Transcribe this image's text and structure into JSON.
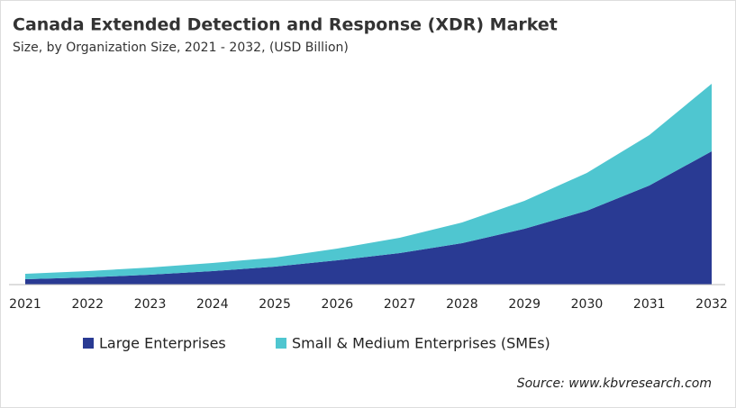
{
  "chart_data": {
    "type": "stacked-area",
    "title": "Canada Extended Detection and Response (XDR) Market",
    "subtitle": "Size, by Organization Size, 2021 - 2032, (USD Billion)",
    "source": "Source: www.kbvresearch.com",
    "categories": [
      "2021",
      "2022",
      "2023",
      "2024",
      "2025",
      "2026",
      "2027",
      "2028",
      "2029",
      "2030",
      "2031",
      "2032"
    ],
    "series": [
      {
        "name": "Large Enterprises",
        "color": "#293a93",
        "values": [
          0.06,
          0.08,
          0.11,
          0.15,
          0.2,
          0.27,
          0.35,
          0.46,
          0.62,
          0.82,
          1.1,
          1.48
        ]
      },
      {
        "name": "Small & Medium Enterprises (SMEs)",
        "color": "#4fc6d0",
        "values": [
          0.06,
          0.07,
          0.08,
          0.09,
          0.1,
          0.13,
          0.17,
          0.23,
          0.31,
          0.42,
          0.56,
          0.75
        ]
      }
    ],
    "ylim": [
      0,
      2.3
    ]
  }
}
